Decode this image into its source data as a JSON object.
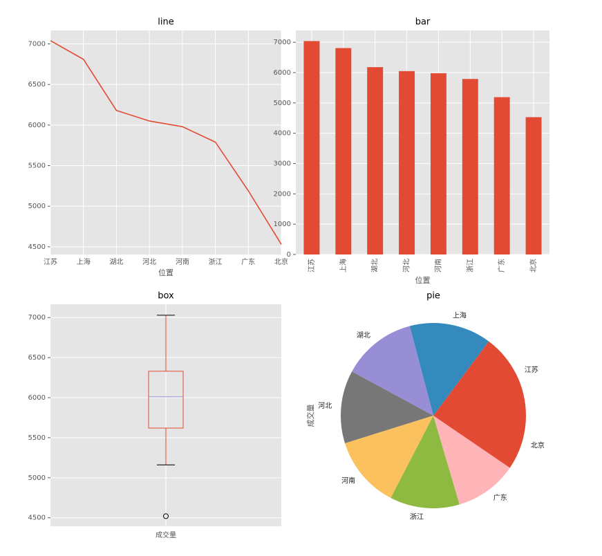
{
  "chart_data": [
    {
      "type": "line",
      "title": "line",
      "xlabel": "位置",
      "categories": [
        "江苏",
        "上海",
        "湖北",
        "河北",
        "河南",
        "浙江",
        "广东",
        "北京"
      ],
      "values": [
        7040,
        6810,
        6180,
        6050,
        5980,
        5790,
        5190,
        4530
      ],
      "color": "#E24A33",
      "ylim": [
        4405,
        7166
      ],
      "yticks": [
        4500,
        5000,
        5500,
        6000,
        6500,
        7000
      ],
      "grid": true
    },
    {
      "type": "bar",
      "title": "bar",
      "xlabel": "位置",
      "categories": [
        "江苏",
        "上海",
        "湖北",
        "河北",
        "河南",
        "浙江",
        "广东",
        "北京"
      ],
      "values": [
        7040,
        6810,
        6180,
        6050,
        5980,
        5790,
        5190,
        4530
      ],
      "color": "#E24A33",
      "ylim": [
        0,
        7392
      ],
      "yticks": [
        0,
        1000,
        2000,
        3000,
        4000,
        5000,
        6000,
        7000
      ],
      "grid": true
    },
    {
      "type": "box",
      "title": "box",
      "categories": [
        "成交量"
      ],
      "whislo": 5160,
      "q1": 5620,
      "median": 6010,
      "q3": 6330,
      "whishi": 7030,
      "fliers": [
        4520
      ],
      "color": "#E24A33",
      "median_color": "#988ED5",
      "ylim": [
        4394,
        7166
      ],
      "yticks": [
        4500,
        5000,
        5500,
        6000,
        6500,
        7000
      ],
      "grid": true
    },
    {
      "type": "pie",
      "title": "pie",
      "ylabel": "成交量",
      "categories": [
        "江苏",
        "上海",
        "湖北",
        "河北",
        "河南",
        "浙江",
        "广东",
        "北京"
      ],
      "values": [
        7040,
        6810,
        6180,
        6050,
        5980,
        5790,
        5190,
        4530
      ],
      "colors": [
        "#E24A33",
        "#348ABD",
        "#988ED5",
        "#777777",
        "#FBC15E",
        "#8EBA42",
        "#FFB5B8",
        "#E24A33"
      ]
    }
  ]
}
